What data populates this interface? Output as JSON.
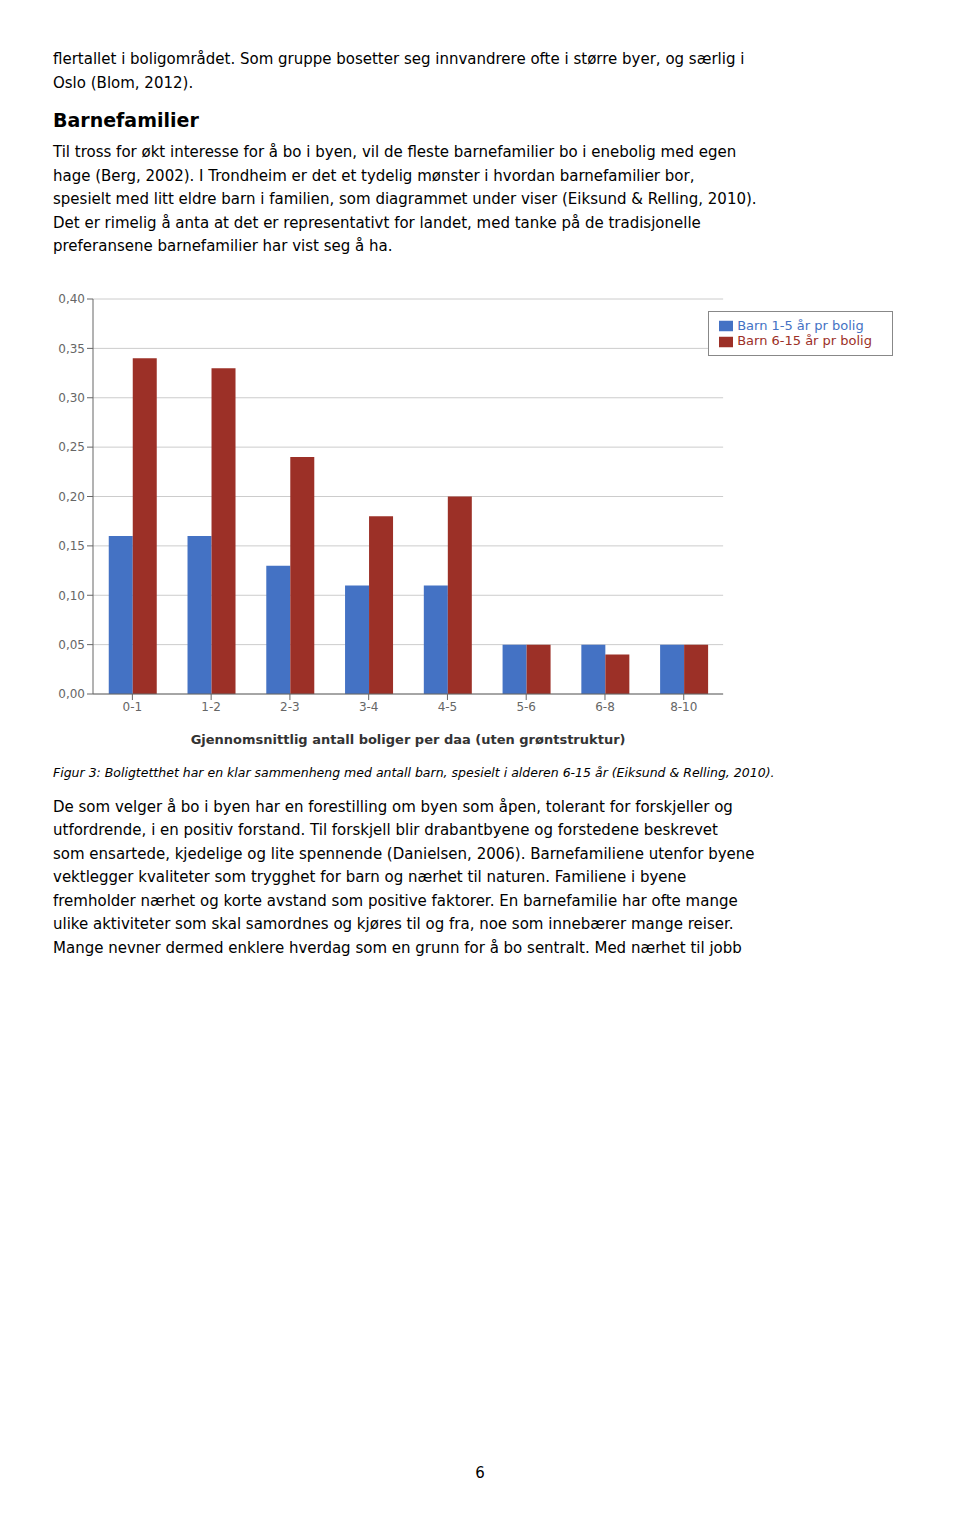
{
  "chart_data": {
    "type": "bar",
    "categories": [
      "0-1",
      "1-2",
      "2-3",
      "3-4",
      "4-5",
      "5-6",
      "6-8",
      "8-10"
    ],
    "series": [
      {
        "name": "Barn 1-5 år pr bolig",
        "color": "#4472C4",
        "values": [
          0.16,
          0.16,
          0.13,
          0.11,
          0.11,
          0.05,
          0.05,
          0.05
        ]
      },
      {
        "name": "Barn 6-15 år pr bolig",
        "color": "#9C3027",
        "values": [
          0.34,
          0.33,
          0.24,
          0.18,
          0.2,
          0.05,
          0.04,
          0.05
        ]
      }
    ],
    "x_label": "Gjennomsnittlig antall boliger per daa (uten grøntstruktur)",
    "ylim": [
      0.0,
      0.4
    ],
    "yticks": [
      {
        "value": 0.0,
        "label": "0,00"
      },
      {
        "value": 0.05,
        "label": "0,05"
      },
      {
        "value": 0.1,
        "label": "0,10"
      },
      {
        "value": 0.15,
        "label": "0,15"
      },
      {
        "value": 0.2,
        "label": "0,20"
      },
      {
        "value": 0.25,
        "label": "0,25"
      },
      {
        "value": 0.3,
        "label": "0,30"
      },
      {
        "value": 0.35,
        "label": "0,35"
      },
      {
        "value": 0.4,
        "label": "0,40"
      }
    ],
    "grid": true,
    "legend": "upper right",
    "annotations": [
      "flertallet i boligområdet. Som gruppe bosetter seg innvandrere ofte i større byer, og særlig i",
      "Oslo (Blom, 2012).",
      "Barnefamilier",
      "Til tross for økt interesse for å bo i byen, vil de fleste barnefamilier bo i enebolig med egen",
      "hage (Berg, 2002). I Trondheim er det et tydelig mønster i hvordan barnefamilier bor,",
      "spesielt med litt eldre barn i familien, som diagrammet under viser (Eiksund & Relling, 2010).",
      "Det er rimelig å anta at det er representativt for landet, med tanke på de tradisjonelle",
      "preferansene barnefamilier har vist seg å ha.",
      "Figur 3: Boligtetthet har en klar sammenheng med antall barn, spesielt i alderen 6-15 år (Eiksund & Relling, 2010).",
      "De som velger å bo i byen har en forestilling om byen som åpen, tolerant for forskjeller og",
      "utfordrende, i en positiv forstand. Til forskjell blir drabantbyene og forstedene beskrevet",
      "som ensartede, kjedelige og lite spennende (Danielsen, 2006). Barnefamiliene utenfor byene",
      "vektlegger kvaliteter som trygghet for barn og nærhet til naturen. Familiene i byene",
      "fremholder nærhet og korte avstand som positive faktorer. En barnefamilie har ofte mange",
      "ulike aktiviteter som skal samordnes og kjøres til og fra, noe som innebærer mange reiser.",
      "Mange nevner dermed enklere hverdag som en grunn for å bo sentralt. Med nærhet til jobb",
      "6"
    ]
  }
}
